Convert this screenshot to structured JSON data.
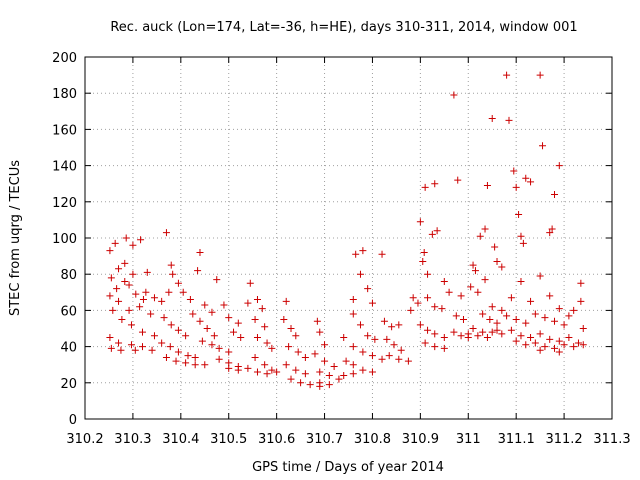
{
  "chart_data": {
    "type": "scatter",
    "title": "Rec. auck (Lon=174, Lat=-36, h=HE), days 310-311, 2014, window 001",
    "xlabel": "GPS time / Days of year 2014",
    "ylabel": "STEC from uqrg / TECUs",
    "xlim": [
      310.2,
      311.3
    ],
    "ylim": [
      0,
      200
    ],
    "xticks": [
      310.2,
      310.3,
      310.4,
      310.5,
      310.6,
      310.7,
      310.8,
      310.9,
      311.0,
      311.1,
      311.2,
      311.3
    ],
    "xtick_labels": [
      "310.2",
      "310.3",
      "310.4",
      "310.5",
      "310.6",
      "310.7",
      "310.8",
      "310.9",
      "311",
      "311.1",
      "311.2",
      "311.3"
    ],
    "yticks": [
      0,
      20,
      40,
      60,
      80,
      100,
      120,
      140,
      160,
      180,
      200
    ],
    "ytick_labels": [
      "0",
      "20",
      "40",
      "60",
      "80",
      "100",
      "120",
      "140",
      "160",
      "180",
      "200"
    ],
    "grid": true,
    "marker": "plus",
    "color": "#cc0000",
    "points": [
      [
        310.252,
        93
      ],
      [
        310.263,
        97
      ],
      [
        310.286,
        100
      ],
      [
        310.316,
        99
      ],
      [
        310.255,
        78
      ],
      [
        310.266,
        72
      ],
      [
        310.283,
        76
      ],
      [
        310.3,
        80
      ],
      [
        310.327,
        70
      ],
      [
        310.252,
        68
      ],
      [
        310.27,
        65
      ],
      [
        310.292,
        60
      ],
      [
        310.314,
        62
      ],
      [
        310.337,
        58
      ],
      [
        310.258,
        60
      ],
      [
        310.277,
        55
      ],
      [
        310.297,
        52
      ],
      [
        310.32,
        48
      ],
      [
        310.345,
        46
      ],
      [
        310.252,
        45
      ],
      [
        310.27,
        42
      ],
      [
        310.297,
        41
      ],
      [
        310.32,
        40
      ],
      [
        310.34,
        38
      ],
      [
        310.255,
        39
      ],
      [
        310.275,
        38
      ],
      [
        310.305,
        38
      ],
      [
        310.27,
        83
      ],
      [
        310.283,
        86
      ],
      [
        310.3,
        96
      ],
      [
        310.292,
        74
      ],
      [
        310.306,
        69
      ],
      [
        310.322,
        66
      ],
      [
        310.33,
        81
      ],
      [
        310.345,
        67
      ],
      [
        310.36,
        65
      ],
      [
        310.37,
        103
      ],
      [
        310.38,
        85
      ],
      [
        310.383,
        80
      ],
      [
        310.375,
        70
      ],
      [
        310.395,
        75
      ],
      [
        310.365,
        56
      ],
      [
        310.38,
        52
      ],
      [
        310.395,
        49
      ],
      [
        310.41,
        46
      ],
      [
        310.36,
        42
      ],
      [
        310.378,
        40
      ],
      [
        310.395,
        37
      ],
      [
        310.415,
        35
      ],
      [
        310.43,
        34
      ],
      [
        310.37,
        34
      ],
      [
        310.39,
        32
      ],
      [
        310.41,
        31
      ],
      [
        310.43,
        30
      ],
      [
        310.45,
        30
      ],
      [
        310.405,
        70
      ],
      [
        310.42,
        66
      ],
      [
        310.44,
        92
      ],
      [
        310.435,
        82
      ],
      [
        310.45,
        63
      ],
      [
        310.465,
        59
      ],
      [
        310.425,
        58
      ],
      [
        310.44,
        54
      ],
      [
        310.455,
        50
      ],
      [
        310.47,
        46
      ],
      [
        310.445,
        43
      ],
      [
        310.465,
        41
      ],
      [
        310.48,
        39
      ],
      [
        310.5,
        37
      ],
      [
        310.475,
        77
      ],
      [
        310.49,
        63
      ],
      [
        310.5,
        56
      ],
      [
        310.52,
        53
      ],
      [
        310.51,
        48
      ],
      [
        310.525,
        45
      ],
      [
        310.48,
        33
      ],
      [
        310.5,
        31
      ],
      [
        310.52,
        29
      ],
      [
        310.54,
        28
      ],
      [
        310.5,
        28
      ],
      [
        310.52,
        27
      ],
      [
        310.545,
        75
      ],
      [
        310.54,
        64
      ],
      [
        310.56,
        66
      ],
      [
        310.57,
        61
      ],
      [
        310.555,
        55
      ],
      [
        310.575,
        51
      ],
      [
        310.56,
        45
      ],
      [
        310.58,
        42
      ],
      [
        310.59,
        39
      ],
      [
        310.555,
        34
      ],
      [
        310.575,
        30
      ],
      [
        310.59,
        27
      ],
      [
        310.56,
        26
      ],
      [
        310.58,
        25
      ],
      [
        310.6,
        26
      ],
      [
        310.62,
        65
      ],
      [
        310.615,
        55
      ],
      [
        310.63,
        50
      ],
      [
        310.64,
        46
      ],
      [
        310.625,
        40
      ],
      [
        310.645,
        37
      ],
      [
        310.66,
        34
      ],
      [
        310.62,
        30
      ],
      [
        310.64,
        27
      ],
      [
        310.66,
        25
      ],
      [
        310.63,
        22
      ],
      [
        310.65,
        20
      ],
      [
        310.67,
        19
      ],
      [
        310.685,
        54
      ],
      [
        310.69,
        48
      ],
      [
        310.7,
        41
      ],
      [
        310.68,
        36
      ],
      [
        310.7,
        32
      ],
      [
        310.72,
        29
      ],
      [
        310.69,
        26
      ],
      [
        310.71,
        24
      ],
      [
        310.73,
        22
      ],
      [
        310.69,
        20
      ],
      [
        310.71,
        19
      ],
      [
        310.69,
        18
      ],
      [
        310.74,
        45
      ],
      [
        310.745,
        32
      ],
      [
        310.76,
        66
      ],
      [
        310.765,
        91
      ],
      [
        310.78,
        93
      ],
      [
        310.775,
        80
      ],
      [
        310.79,
        72
      ],
      [
        310.8,
        64
      ],
      [
        310.76,
        58
      ],
      [
        310.775,
        52
      ],
      [
        310.79,
        46
      ],
      [
        310.805,
        44
      ],
      [
        310.76,
        40
      ],
      [
        310.78,
        37
      ],
      [
        310.8,
        35
      ],
      [
        310.82,
        33
      ],
      [
        310.76,
        30
      ],
      [
        310.78,
        27
      ],
      [
        310.8,
        26
      ],
      [
        310.76,
        25
      ],
      [
        310.74,
        24
      ],
      [
        310.82,
        91
      ],
      [
        310.825,
        54
      ],
      [
        310.84,
        51
      ],
      [
        310.855,
        52
      ],
      [
        310.83,
        44
      ],
      [
        310.845,
        41
      ],
      [
        310.86,
        38
      ],
      [
        310.835,
        35
      ],
      [
        310.855,
        33
      ],
      [
        310.875,
        32
      ],
      [
        310.885,
        67
      ],
      [
        310.88,
        60
      ],
      [
        310.895,
        64
      ],
      [
        310.9,
        109
      ],
      [
        310.905,
        87
      ],
      [
        310.91,
        128
      ],
      [
        310.908,
        92
      ],
      [
        310.915,
        80
      ],
      [
        310.925,
        102
      ],
      [
        310.93,
        130
      ],
      [
        310.935,
        104
      ],
      [
        310.915,
        67
      ],
      [
        310.93,
        62
      ],
      [
        310.945,
        61
      ],
      [
        310.9,
        52
      ],
      [
        310.915,
        49
      ],
      [
        310.93,
        47
      ],
      [
        310.95,
        45
      ],
      [
        310.91,
        42
      ],
      [
        310.93,
        40
      ],
      [
        310.95,
        39
      ],
      [
        310.95,
        76
      ],
      [
        310.96,
        70
      ],
      [
        310.97,
        179
      ],
      [
        310.978,
        132
      ],
      [
        310.985,
        68
      ],
      [
        310.975,
        57
      ],
      [
        310.99,
        55
      ],
      [
        310.97,
        48
      ],
      [
        310.985,
        46
      ],
      [
        311.0,
        45
      ],
      [
        311.01,
        85
      ],
      [
        311.015,
        82
      ],
      [
        311.025,
        101
      ],
      [
        311.035,
        105
      ],
      [
        311.04,
        129
      ],
      [
        311.05,
        166
      ],
      [
        311.055,
        95
      ],
      [
        311.06,
        87
      ],
      [
        311.07,
        84
      ],
      [
        311.08,
        190
      ],
      [
        311.085,
        165
      ],
      [
        311.095,
        137
      ],
      [
        311.1,
        128
      ],
      [
        311.105,
        113
      ],
      [
        311.11,
        101
      ],
      [
        311.115,
        97
      ],
      [
        311.12,
        133
      ],
      [
        311.13,
        131
      ],
      [
        311.15,
        190
      ],
      [
        311.155,
        151
      ],
      [
        311.17,
        103
      ],
      [
        311.175,
        105
      ],
      [
        311.18,
        124
      ],
      [
        311.19,
        140
      ],
      [
        311.005,
        73
      ],
      [
        311.02,
        70
      ],
      [
        311.035,
        77
      ],
      [
        311.05,
        62
      ],
      [
        311.07,
        60
      ],
      [
        311.09,
        67
      ],
      [
        311.11,
        76
      ],
      [
        311.13,
        65
      ],
      [
        311.15,
        79
      ],
      [
        311.17,
        68
      ],
      [
        311.19,
        61
      ],
      [
        311.21,
        57
      ],
      [
        311.03,
        58
      ],
      [
        311.045,
        55
      ],
      [
        311.06,
        53
      ],
      [
        311.08,
        57
      ],
      [
        311.1,
        55
      ],
      [
        311.12,
        53
      ],
      [
        311.14,
        58
      ],
      [
        311.16,
        56
      ],
      [
        311.18,
        54
      ],
      [
        311.2,
        52
      ],
      [
        311.22,
        60
      ],
      [
        311.235,
        75
      ],
      [
        311.01,
        50
      ],
      [
        311.03,
        48
      ],
      [
        311.05,
        48
      ],
      [
        311.07,
        47
      ],
      [
        311.09,
        49
      ],
      [
        311.11,
        46
      ],
      [
        311.13,
        45
      ],
      [
        311.15,
        47
      ],
      [
        311.17,
        44
      ],
      [
        311.19,
        43
      ],
      [
        311.21,
        45
      ],
      [
        311.23,
        42
      ],
      [
        311.0,
        47
      ],
      [
        311.02,
        46
      ],
      [
        311.04,
        45
      ],
      [
        311.06,
        49
      ],
      [
        311.1,
        43
      ],
      [
        311.12,
        41
      ],
      [
        311.14,
        42
      ],
      [
        311.16,
        40
      ],
      [
        311.18,
        39
      ],
      [
        311.2,
        41
      ],
      [
        311.22,
        40
      ],
      [
        311.24,
        41
      ],
      [
        311.235,
        65
      ],
      [
        311.24,
        50
      ],
      [
        311.15,
        38
      ],
      [
        311.19,
        37
      ]
    ]
  }
}
